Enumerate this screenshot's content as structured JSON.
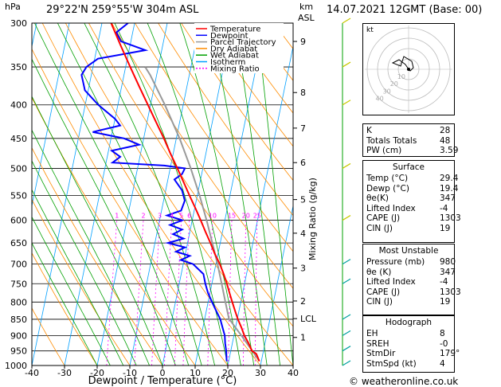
{
  "header": {
    "hpa_label": "hPa",
    "location": "29°22'N  259°55'W  304m  ASL",
    "km_label": "km",
    "asl_label": "ASL",
    "datetime": "14.07.2021  12GMT  (Base: 00)"
  },
  "legend": [
    {
      "label": "Temperature",
      "color": "#ff0000",
      "dash": ""
    },
    {
      "label": "Dewpoint",
      "color": "#0000ff",
      "dash": ""
    },
    {
      "label": "Parcel Trajectory",
      "color": "#999999",
      "dash": ""
    },
    {
      "label": "Dry Adiabat",
      "color": "#ff8c00",
      "dash": ""
    },
    {
      "label": "Wet Adiabat",
      "color": "#00a000",
      "dash": ""
    },
    {
      "label": "Isotherm",
      "color": "#00a0ff",
      "dash": ""
    },
    {
      "label": "Mixing Ratio",
      "color": "#ff00ff",
      "dash": "2,2"
    }
  ],
  "chart_data": {
    "type": "skew-t",
    "xlabel": "Dewpoint / Temperature (°C)",
    "ylabel_right": "Mixing Ratio (g/kg)",
    "xlim": [
      -40,
      40
    ],
    "ylim": [
      1000,
      300
    ],
    "pressure_ticks": [
      300,
      350,
      400,
      450,
      500,
      550,
      600,
      650,
      700,
      750,
      800,
      850,
      900,
      950,
      1000
    ],
    "temperature_ticks": [
      -40,
      -30,
      -20,
      -10,
      0,
      10,
      20,
      30,
      40
    ],
    "height_ticks": [
      {
        "label": "9",
        "p": 320
      },
      {
        "label": "8",
        "p": 383
      },
      {
        "label": "7",
        "p": 434
      },
      {
        "label": "6",
        "p": 490
      },
      {
        "label": "5",
        "p": 558
      },
      {
        "label": "4",
        "p": 628
      },
      {
        "label": "3",
        "p": 710
      },
      {
        "label": "2",
        "p": 797
      },
      {
        "label": "LCL",
        "p": 848
      },
      {
        "label": "1",
        "p": 906
      }
    ],
    "mixing_ratio_labels": [
      "1",
      "2",
      "3",
      "4",
      "5",
      "6",
      "10",
      "15",
      "20",
      "25"
    ],
    "temperature": {
      "p": [
        985,
        960,
        950,
        925,
        900,
        875,
        850,
        825,
        800,
        775,
        750,
        725,
        700,
        675,
        650,
        625,
        600,
        575,
        550,
        525,
        500,
        475,
        450,
        425,
        400,
        375,
        350,
        325,
        300
      ],
      "t": [
        29.4,
        28.0,
        26.5,
        25.0,
        23.2,
        21.8,
        20.2,
        18.8,
        17.4,
        16.0,
        14.6,
        13.0,
        11.2,
        9.0,
        7.0,
        4.8,
        2.6,
        0.2,
        -2.4,
        -5.0,
        -7.8,
        -10.8,
        -13.8,
        -17.2,
        -20.8,
        -24.6,
        -28.6,
        -32.8,
        -37.2
      ]
    },
    "dewpoint": {
      "p": [
        985,
        950,
        925,
        900,
        875,
        850,
        825,
        800,
        775,
        750,
        725,
        700,
        690,
        680,
        670,
        660,
        650,
        640,
        630,
        620,
        610,
        600,
        590,
        580,
        560,
        540,
        520,
        510,
        500,
        495,
        490,
        480,
        470,
        460,
        450,
        440,
        430,
        420,
        400,
        380,
        360,
        350,
        340,
        330,
        320,
        310,
        300
      ],
      "t": [
        19.4,
        18.6,
        17.8,
        17.2,
        16.0,
        14.8,
        13.0,
        11.2,
        9.4,
        8.0,
        6.8,
        3.0,
        -1.0,
        1.5,
        -3.0,
        -0.5,
        -6.0,
        -1.5,
        -5.0,
        -2.5,
        -6.5,
        -3.0,
        -8.0,
        -4.0,
        -3.5,
        -5.0,
        -8.0,
        -6.0,
        -5.5,
        -12.0,
        -28.0,
        -26.0,
        -29.0,
        -21.0,
        -26.0,
        -36.0,
        -28.0,
        -30.0,
        -36.0,
        -41.0,
        -43.0,
        -42.0,
        -39.0,
        -25.0,
        -33.0,
        -35.0,
        -32.0
      ]
    },
    "parcel": {
      "p": [
        985,
        950,
        900,
        848,
        800,
        750,
        700,
        650,
        600,
        550,
        500,
        450,
        400,
        375,
        360,
        350
      ],
      "t": [
        29.4,
        26.6,
        22.3,
        17.4,
        15.3,
        13.0,
        10.5,
        7.6,
        4.4,
        0.7,
        -3.7,
        -9.0,
        -15.6,
        -19.5,
        -22.0,
        -24.0
      ]
    },
    "indices": [
      {
        "label": "K",
        "value": "28"
      },
      {
        "label": "Totals Totals",
        "value": "48"
      },
      {
        "label": "PW (cm)",
        "value": "3.59"
      }
    ],
    "surface": {
      "title": "Surface",
      "rows": [
        {
          "label": "Temp (°C)",
          "value": "29.4"
        },
        {
          "label": "Dewp (°C)",
          "value": "19.4"
        },
        {
          "label": "θe(K)",
          "value": "347"
        },
        {
          "label": "Lifted Index",
          "value": "-4"
        },
        {
          "label": "CAPE (J)",
          "value": "1303"
        },
        {
          "label": "CIN (J)",
          "value": "19"
        }
      ]
    },
    "most_unstable": {
      "title": "Most Unstable",
      "rows": [
        {
          "label": "Pressure (mb)",
          "value": "980"
        },
        {
          "label": "θe (K)",
          "value": "347"
        },
        {
          "label": "Lifted Index",
          "value": "-4"
        },
        {
          "label": "CAPE (J)",
          "value": "1303"
        },
        {
          "label": "CIN (J)",
          "value": "19"
        }
      ]
    },
    "hodograph_table": {
      "title": "Hodograph",
      "rows": [
        {
          "label": "EH",
          "value": "8"
        },
        {
          "label": "SREH",
          "value": "-0"
        },
        {
          "label": "StmDir",
          "value": "179°"
        },
        {
          "label": "StmSpd (kt)",
          "value": "4"
        }
      ]
    },
    "hodograph": {
      "unit_label": "kt",
      "ring_labels": [
        "10",
        "20",
        "30",
        "40"
      ],
      "trace_u": [
        0,
        -2,
        -6,
        -10,
        -5,
        -3,
        2,
        3,
        1,
        0
      ],
      "trace_v": [
        0,
        3,
        6,
        4,
        2,
        8,
        5,
        1,
        -1,
        0
      ]
    },
    "wind_levels_hpa": [
      300,
      350,
      400,
      500,
      600,
      700,
      750,
      850,
      900,
      950,
      1000
    ]
  },
  "footer": {
    "copyright": "© weatheronline.co.uk"
  }
}
